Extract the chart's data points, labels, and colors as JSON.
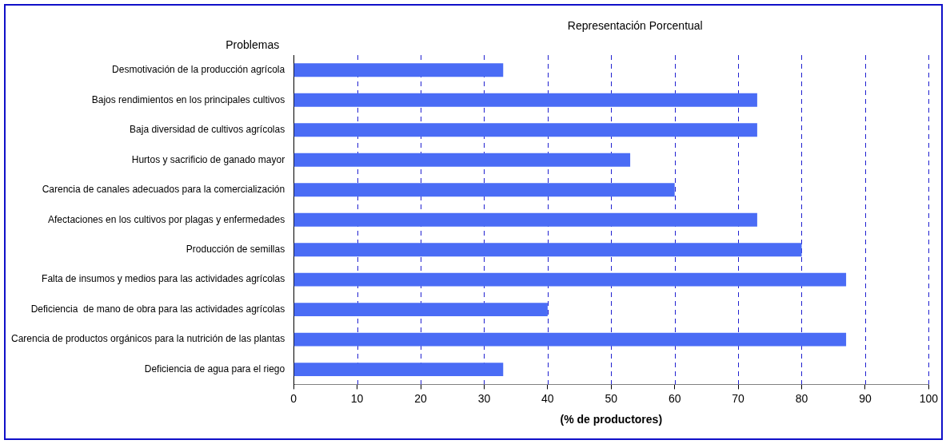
{
  "chart_data": {
    "type": "bar",
    "orientation": "horizontal",
    "title": "Representación Porcentual",
    "ylabel": "Problemas",
    "xlabel": "(% de productores)",
    "categories": [
      "Desmotivación de la producción agrícola",
      "Bajos rendimientos en los principales cultivos",
      "Baja diversidad de cultivos agrícolas",
      "Hurtos y sacrificio de ganado mayor",
      "Carencia de canales adecuados para la comercialización",
      "Afectaciones en los cultivos por plagas y enfermedades",
      "Producción de semillas",
      "Falta de insumos y medios para las actividades agrícolas",
      "Deficiencia  de mano de obra para las actividades agrícolas",
      "Carencia de productos orgánicos para la nutrición de las plantas",
      "Deficiencia de agua para el riego"
    ],
    "values": [
      33,
      73,
      73,
      53,
      60,
      73,
      80,
      87,
      40,
      87,
      33
    ],
    "color": "#4a6cf5",
    "xlim": [
      0,
      100
    ],
    "xticks": [
      0,
      10,
      20,
      30,
      40,
      50,
      60,
      70,
      80,
      90,
      100
    ],
    "grid": "x",
    "legend": false
  }
}
